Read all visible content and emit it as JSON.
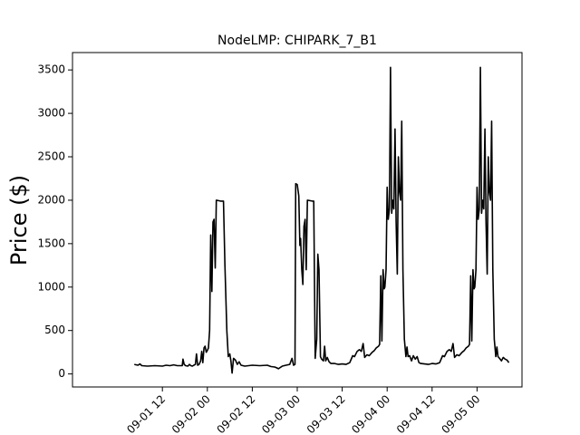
{
  "chart_data": {
    "type": "line",
    "title": "NodeLMP: CHIPARK_7_B1",
    "xlabel": "",
    "ylabel": "Price ($)",
    "ylim": [
      -150,
      3700
    ],
    "xlim_hours": [
      -12,
      108
    ],
    "x_ticks": [
      {
        "hours": 12,
        "label": "09-01 12"
      },
      {
        "hours": 24,
        "label": "09-02 00"
      },
      {
        "hours": 36,
        "label": "09-02 12"
      },
      {
        "hours": 48,
        "label": "09-03 00"
      },
      {
        "hours": 60,
        "label": "09-03 12"
      },
      {
        "hours": 72,
        "label": "09-04 00"
      },
      {
        "hours": 84,
        "label": "09-04 12"
      },
      {
        "hours": 96,
        "label": "09-05 00"
      }
    ],
    "y_ticks": [
      0,
      500,
      1000,
      1500,
      2000,
      2500,
      3000,
      3500
    ],
    "grid": false,
    "series": [
      {
        "color": "#000000",
        "points": [
          [
            4.5,
            110
          ],
          [
            5.5,
            100
          ],
          [
            6.0,
            115
          ],
          [
            6.5,
            95
          ],
          [
            8,
            90
          ],
          [
            10,
            95
          ],
          [
            12,
            90
          ],
          [
            13,
            100
          ],
          [
            14,
            95
          ],
          [
            15,
            105
          ],
          [
            16,
            95
          ],
          [
            17.3,
            95
          ],
          [
            17.5,
            170
          ],
          [
            17.8,
            110
          ],
          [
            18.2,
            95
          ],
          [
            18.8,
            90
          ],
          [
            19.2,
            110
          ],
          [
            19.6,
            95
          ],
          [
            20.0,
            90
          ],
          [
            20.4,
            100
          ],
          [
            20.8,
            110
          ],
          [
            21.1,
            230
          ],
          [
            21.4,
            100
          ],
          [
            21.8,
            110
          ],
          [
            22.2,
            150
          ],
          [
            22.5,
            260
          ],
          [
            22.8,
            130
          ],
          [
            23.1,
            300
          ],
          [
            23.4,
            320
          ],
          [
            23.7,
            250
          ],
          [
            24.0,
            270
          ],
          [
            24.3,
            300
          ],
          [
            24.6,
            500
          ],
          [
            24.9,
            1600
          ],
          [
            25.2,
            950
          ],
          [
            25.5,
            1750
          ],
          [
            25.8,
            1780
          ],
          [
            26.1,
            1220
          ],
          [
            26.4,
            2000
          ],
          [
            27.5,
            1990
          ],
          [
            28.3,
            1990
          ],
          [
            28.7,
            1250
          ],
          [
            29.2,
            500
          ],
          [
            29.6,
            200
          ],
          [
            30.0,
            230
          ],
          [
            30.3,
            150
          ],
          [
            30.6,
            10
          ],
          [
            31.0,
            180
          ],
          [
            31.5,
            160
          ],
          [
            32.0,
            110
          ],
          [
            32.5,
            140
          ],
          [
            33.0,
            100
          ],
          [
            34,
            90
          ],
          [
            36,
            100
          ],
          [
            38,
            95
          ],
          [
            40,
            100
          ],
          [
            41,
            85
          ],
          [
            42,
            80
          ],
          [
            42.5,
            70
          ],
          [
            43,
            60
          ],
          [
            43.5,
            75
          ],
          [
            44,
            90
          ],
          [
            45,
            100
          ],
          [
            46,
            110
          ],
          [
            46.6,
            180
          ],
          [
            47.0,
            100
          ],
          [
            47.4,
            110
          ],
          [
            47.6,
            2190
          ],
          [
            48.0,
            2180
          ],
          [
            48.4,
            2050
          ],
          [
            48.7,
            1480
          ],
          [
            48.9,
            1560
          ],
          [
            49.2,
            1200
          ],
          [
            49.5,
            1030
          ],
          [
            49.8,
            1700
          ],
          [
            50.1,
            1780
          ],
          [
            50.4,
            1200
          ],
          [
            50.7,
            2000
          ],
          [
            52.0,
            1990
          ],
          [
            52.4,
            1990
          ],
          [
            52.8,
            180
          ],
          [
            53.2,
            400
          ],
          [
            53.5,
            1380
          ],
          [
            53.8,
            1200
          ],
          [
            54.2,
            200
          ],
          [
            54.5,
            170
          ],
          [
            55.0,
            150
          ],
          [
            55.3,
            320
          ],
          [
            55.6,
            150
          ],
          [
            56,
            190
          ],
          [
            56.5,
            140
          ],
          [
            57,
            120
          ],
          [
            58,
            120
          ],
          [
            59,
            110
          ],
          [
            60,
            115
          ],
          [
            61,
            110
          ],
          [
            62,
            130
          ],
          [
            62.8,
            210
          ],
          [
            63.3,
            200
          ],
          [
            64.0,
            260
          ],
          [
            64.6,
            280
          ],
          [
            65.1,
            260
          ],
          [
            65.6,
            350
          ],
          [
            66.0,
            190
          ],
          [
            66.6,
            220
          ],
          [
            67.2,
            210
          ],
          [
            68.0,
            250
          ],
          [
            68.6,
            270
          ],
          [
            69.1,
            300
          ],
          [
            69.7,
            320
          ],
          [
            70.0,
            340
          ],
          [
            70.3,
            1130
          ],
          [
            70.6,
            380
          ],
          [
            70.9,
            1200
          ],
          [
            71.2,
            980
          ],
          [
            71.4,
            1000
          ],
          [
            71.7,
            1200
          ],
          [
            72.0,
            2150
          ],
          [
            72.3,
            1780
          ],
          [
            72.6,
            1900
          ],
          [
            72.9,
            3530
          ],
          [
            73.2,
            1850
          ],
          [
            73.5,
            2000
          ],
          [
            73.8,
            1900
          ],
          [
            74.1,
            2820
          ],
          [
            74.4,
            1750
          ],
          [
            74.7,
            1150
          ],
          [
            75.0,
            2500
          ],
          [
            75.3,
            2100
          ],
          [
            75.6,
            2000
          ],
          [
            75.9,
            2910
          ],
          [
            76.2,
            1200
          ],
          [
            76.6,
            400
          ],
          [
            77.0,
            200
          ],
          [
            77.3,
            310
          ],
          [
            77.6,
            200
          ],
          [
            78.0,
            210
          ],
          [
            78.5,
            150
          ],
          [
            79,
            210
          ],
          [
            79.5,
            170
          ],
          [
            80,
            200
          ],
          [
            80.5,
            130
          ],
          [
            81,
            120
          ],
          [
            82,
            115
          ],
          [
            83,
            110
          ],
          [
            84,
            120
          ],
          [
            85,
            115
          ],
          [
            86,
            130
          ],
          [
            86.8,
            210
          ],
          [
            87.3,
            200
          ],
          [
            88.0,
            260
          ],
          [
            88.6,
            280
          ],
          [
            89.1,
            260
          ],
          [
            89.6,
            350
          ],
          [
            90.0,
            190
          ],
          [
            90.6,
            220
          ],
          [
            91.2,
            210
          ],
          [
            92.0,
            250
          ],
          [
            92.6,
            270
          ],
          [
            93.1,
            300
          ],
          [
            93.7,
            320
          ],
          [
            94.0,
            340
          ],
          [
            94.3,
            1130
          ],
          [
            94.6,
            380
          ],
          [
            94.9,
            1200
          ],
          [
            95.2,
            980
          ],
          [
            95.4,
            1000
          ],
          [
            95.7,
            1200
          ],
          [
            96.0,
            2150
          ],
          [
            96.3,
            1780
          ],
          [
            96.6,
            1900
          ],
          [
            96.9,
            3530
          ],
          [
            97.2,
            1850
          ],
          [
            97.5,
            2000
          ],
          [
            97.8,
            1900
          ],
          [
            98.1,
            2820
          ],
          [
            98.4,
            1750
          ],
          [
            98.7,
            1150
          ],
          [
            99.0,
            2500
          ],
          [
            99.3,
            2100
          ],
          [
            99.6,
            2000
          ],
          [
            99.9,
            2910
          ],
          [
            100.2,
            1200
          ],
          [
            100.6,
            400
          ],
          [
            101.0,
            200
          ],
          [
            101.3,
            310
          ],
          [
            101.6,
            200
          ],
          [
            102.0,
            180
          ],
          [
            102.5,
            150
          ],
          [
            103.0,
            190
          ],
          [
            103.5,
            170
          ],
          [
            104.0,
            160
          ],
          [
            104.5,
            130
          ]
        ]
      }
    ]
  }
}
